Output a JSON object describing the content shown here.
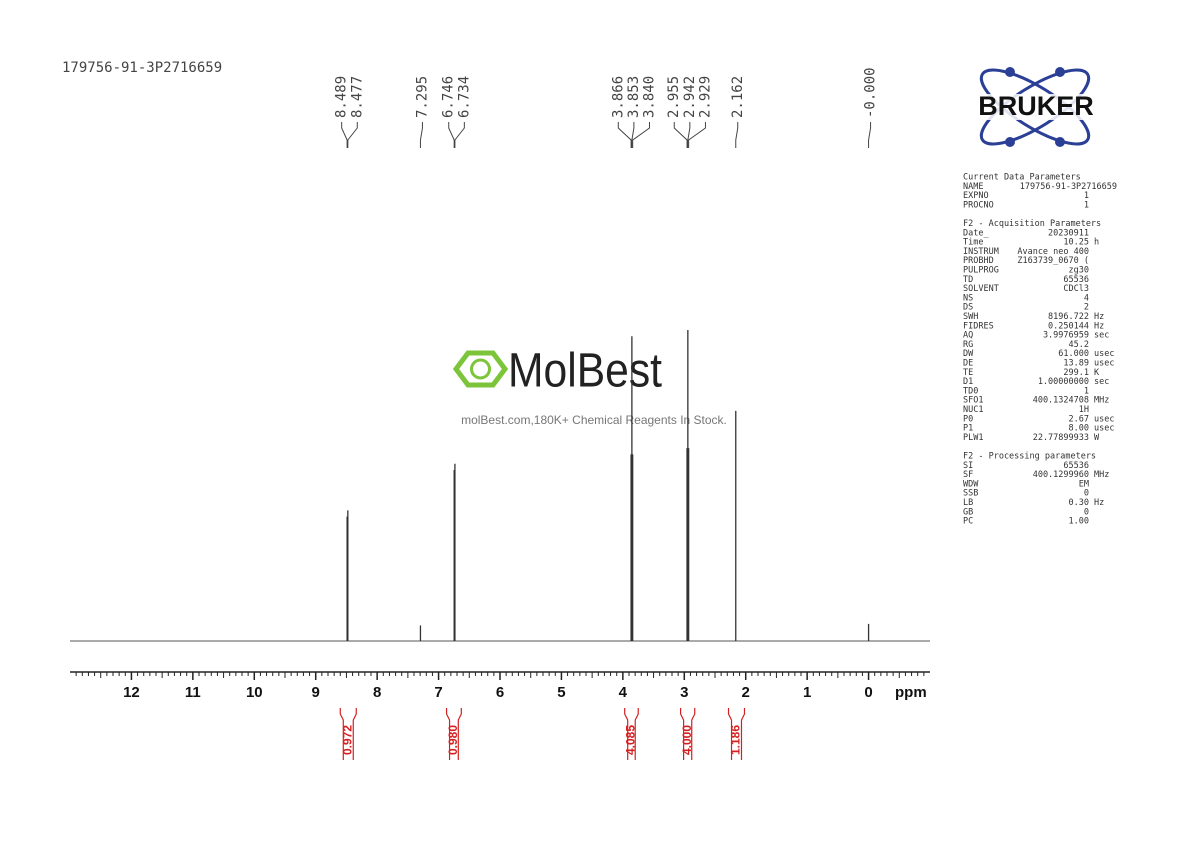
{
  "chart_data": {
    "type": "nmr",
    "title": "179756-91-3P2716659",
    "x_label": "ppm",
    "xlim": [
      13,
      -1
    ],
    "xticks": [
      12,
      11,
      10,
      9,
      8,
      7,
      6,
      5,
      4,
      3,
      2,
      1,
      0
    ],
    "ylim": [
      0,
      100
    ],
    "grid": false,
    "color": "#555555",
    "peaks": {
      "x": [
        8.489,
        8.477,
        7.295,
        6.746,
        6.734,
        3.866,
        3.853,
        3.84,
        2.955,
        2.942,
        2.929,
        2.162,
        0.0
      ],
      "labels": [
        "8.489",
        "8.477",
        "7.295",
        "6.746",
        "6.734",
        "3.866",
        "3.853",
        "3.840",
        "2.955",
        "2.942",
        "2.929",
        "2.162",
        "-0.000"
      ],
      "values": [
        40,
        42,
        5,
        55,
        57,
        60,
        98,
        60,
        62,
        100,
        62,
        74,
        5.5
      ]
    },
    "integrals": {
      "ranges": [
        [
          8.6,
          8.34
        ],
        [
          6.87,
          6.63
        ],
        [
          3.97,
          3.75
        ],
        [
          3.06,
          2.83
        ],
        [
          2.28,
          2.02
        ]
      ],
      "values": [
        0.972,
        0.98,
        4.085,
        4,
        1.186
      ],
      "value_labels": [
        "0.972",
        "0.980",
        "4.085",
        "4.000",
        "1.186"
      ],
      "color": "#d42020"
    }
  },
  "logo": "BRUKER",
  "watermark": {
    "title": "MolBest",
    "subtitle": "molBest.com,180K+ Chemical Reagents In Stock."
  },
  "parameters": [
    {
      "title": "Current Data Parameters",
      "rows": [
        [
          "NAME",
          "179756-91-3P2716659"
        ],
        [
          "EXPNO",
          "1"
        ],
        [
          "PROCNO",
          "1"
        ]
      ]
    },
    {
      "title": "F2 - Acquisition Parameters",
      "rows": [
        [
          "Date_",
          "20230911"
        ],
        [
          "Time",
          "10.25",
          "h"
        ],
        [
          "INSTRUM",
          "Avance neo 400"
        ],
        [
          "PROBHD",
          "Z163739_0670 ("
        ],
        [
          "PULPROG",
          "zg30"
        ],
        [
          "TD",
          "65536"
        ],
        [
          "SOLVENT",
          "CDCl3"
        ],
        [
          "NS",
          "4"
        ],
        [
          "DS",
          "2"
        ],
        [
          "SWH",
          "8196.722",
          "Hz"
        ],
        [
          "FIDRES",
          "0.250144",
          "Hz"
        ],
        [
          "AQ",
          "3.9976959",
          "sec"
        ],
        [
          "RG",
          "45.2"
        ],
        [
          "DW",
          "61.000",
          "usec"
        ],
        [
          "DE",
          "13.89",
          "usec"
        ],
        [
          "TE",
          "299.1",
          "K"
        ],
        [
          "D1",
          "1.00000000",
          "sec"
        ],
        [
          "TD0",
          "1"
        ],
        [
          "SFO1",
          "400.1324708",
          "MHz"
        ],
        [
          "NUC1",
          "1H"
        ],
        [
          "P0",
          "2.67",
          "usec"
        ],
        [
          "P1",
          "8.00",
          "usec"
        ],
        [
          "PLW1",
          "22.77899933",
          "W"
        ]
      ]
    },
    {
      "title": "F2 - Processing parameters",
      "rows": [
        [
          "SI",
          "65536"
        ],
        [
          "SF",
          "400.1299960",
          "MHz"
        ],
        [
          "WDW",
          "EM"
        ],
        [
          "SSB",
          "0"
        ],
        [
          "LB",
          "0.30",
          "Hz"
        ],
        [
          "GB",
          "0"
        ],
        [
          "PC",
          "1.00"
        ]
      ]
    }
  ]
}
